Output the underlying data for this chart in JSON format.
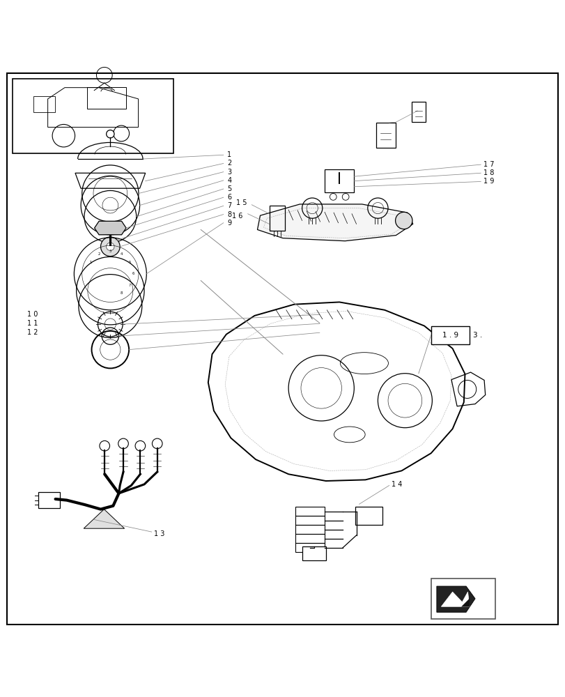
{
  "bg_color": "#ffffff",
  "line_color": "#000000",
  "light_gray": "#aaaaaa",
  "border_color": "#000000",
  "fig_width": 8.12,
  "fig_height": 10.0,
  "dpi": 100
}
